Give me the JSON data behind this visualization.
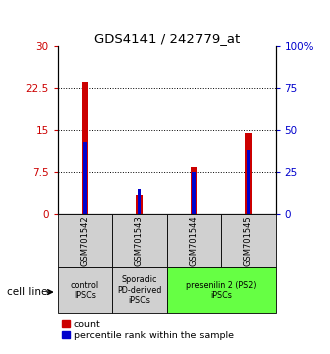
{
  "title": "GDS4141 / 242779_at",
  "categories": [
    "GSM701542",
    "GSM701543",
    "GSM701544",
    "GSM701545"
  ],
  "red_values": [
    23.5,
    3.5,
    8.5,
    14.5
  ],
  "blue_values_pct": [
    43,
    15,
    25,
    38
  ],
  "ylim_left": [
    0,
    30
  ],
  "ylim_right": [
    0,
    100
  ],
  "yticks_left": [
    0,
    7.5,
    15,
    22.5,
    30
  ],
  "yticks_right": [
    0,
    25,
    50,
    75,
    100
  ],
  "ytick_labels_left": [
    "0",
    "7.5",
    "15",
    "22.5",
    "30"
  ],
  "ytick_labels_right": [
    "0",
    "25",
    "50",
    "75",
    "100%"
  ],
  "red_color": "#cc0000",
  "blue_color": "#0000cc",
  "groups": [
    {
      "label": "control\nIPSCs",
      "start": 0,
      "end": 0,
      "color": "#d0d0d0"
    },
    {
      "label": "Sporadic\nPD-derived\niPSCs",
      "start": 1,
      "end": 1,
      "color": "#d0d0d0"
    },
    {
      "label": "presenilin 2 (PS2)\niPSCs",
      "start": 2,
      "end": 3,
      "color": "#66ff44"
    }
  ],
  "sample_box_color": "#d0d0d0",
  "cell_line_label": "cell line",
  "legend_red": "count",
  "legend_blue": "percentile rank within the sample",
  "plot_bg_color": "#ffffff"
}
